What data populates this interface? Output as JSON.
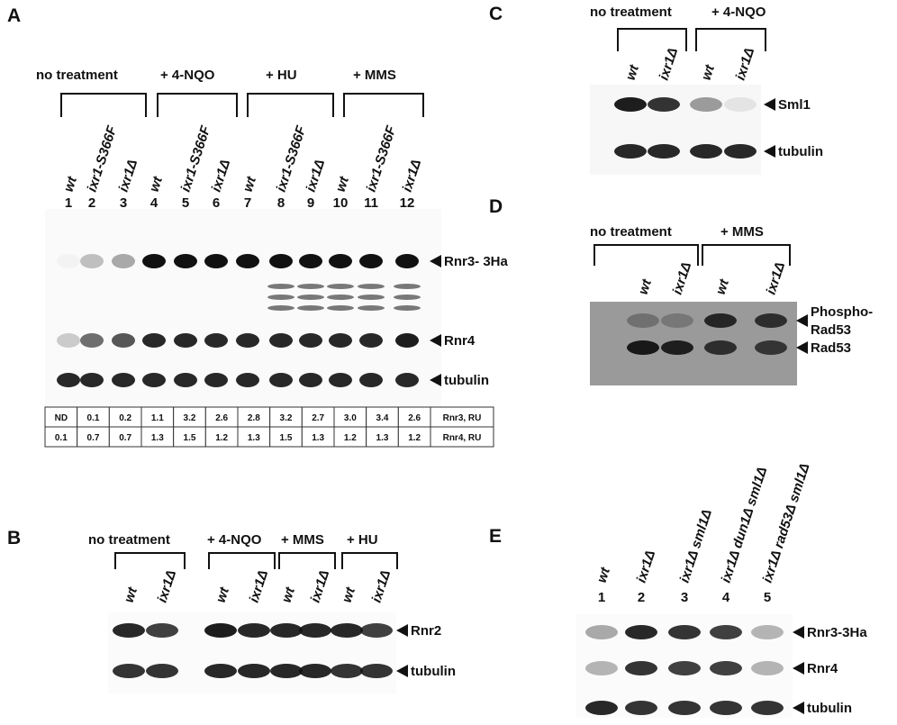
{
  "panels": [
    {
      "label": "A",
      "groups": [
        "no treatment",
        "+ 4-NQO",
        "+ HU",
        "+ MMS"
      ],
      "lanes": [
        {
          "number": "1",
          "genotype": "wt"
        },
        {
          "number": "2",
          "genotype": "ixr1-S366F"
        },
        {
          "number": "3",
          "genotype": "ixr1Δ"
        },
        {
          "number": "4",
          "genotype": "wt"
        },
        {
          "number": "5",
          "genotype": "ixr1-S366F"
        },
        {
          "number": "6",
          "genotype": "ixr1Δ"
        },
        {
          "number": "7",
          "genotype": "wt"
        },
        {
          "number": "8",
          "genotype": "ixr1-S366F"
        },
        {
          "number": "9",
          "genotype": "ixr1Δ"
        },
        {
          "number": "10",
          "genotype": "wt"
        },
        {
          "number": "11",
          "genotype": "ixr1-S366F"
        },
        {
          "number": "12",
          "genotype": "ixr1Δ"
        }
      ],
      "bands": [
        "Rnr3- 3Ha",
        "Rnr4",
        "tubulin"
      ],
      "table": [
        [
          "ND",
          "0.1",
          "0.2",
          "1.1",
          "3.2",
          "2.6",
          "2.8",
          "3.2",
          "2.7",
          "3.0",
          "3.4",
          "2.6",
          "Rnr3, RU"
        ],
        [
          "0.1",
          "0.7",
          "0.7",
          "1.3",
          "1.5",
          "1.2",
          "1.3",
          "1.5",
          "1.3",
          "1.2",
          "1.3",
          "1.2",
          "Rnr4, RU"
        ]
      ]
    },
    {
      "label": "B",
      "groups": [
        "no treatment",
        "+ 4-NQO",
        "+ MMS",
        "+ HU"
      ],
      "lanes": [
        {
          "genotype": "wt"
        },
        {
          "genotype": "ixr1Δ"
        },
        {
          "genotype": "wt"
        },
        {
          "genotype": "ixr1Δ"
        },
        {
          "genotype": "wt"
        },
        {
          "genotype": "ixr1Δ"
        },
        {
          "genotype": "wt"
        },
        {
          "genotype": "ixr1Δ"
        }
      ],
      "bands": [
        "Rnr2",
        "tubulin"
      ]
    },
    {
      "label": "C",
      "groups": [
        "no treatment",
        "+ 4-NQO"
      ],
      "lanes": [
        {
          "genotype": "wt"
        },
        {
          "genotype": "ixr1Δ"
        },
        {
          "genotype": "wt"
        },
        {
          "genotype": "ixr1Δ"
        }
      ],
      "bands": [
        "Sml1",
        "tubulin"
      ]
    },
    {
      "label": "D",
      "groups": [
        "no treatment",
        "+ MMS"
      ],
      "lanes": [
        {
          "genotype": "wt"
        },
        {
          "genotype": "ixr1Δ"
        },
        {
          "genotype": "wt"
        },
        {
          "genotype": "ixr1Δ"
        }
      ],
      "bands": [
        "Phospho-\nRad53",
        "Rad53"
      ]
    },
    {
      "label": "E",
      "lanes": [
        {
          "number": "1",
          "genotype": "wt"
        },
        {
          "number": "2",
          "genotype": "ixr1Δ"
        },
        {
          "number": "3",
          "genotype": "ixr1Δ sml1Δ"
        },
        {
          "number": "4",
          "genotype": "ixr1Δ dun1Δ sml1Δ"
        },
        {
          "number": "5",
          "genotype": "ixr1Δ rad53Δ sml1Δ"
        }
      ],
      "bands": [
        "Rnr3-3Ha",
        "Rnr4",
        "tubulin"
      ]
    }
  ]
}
